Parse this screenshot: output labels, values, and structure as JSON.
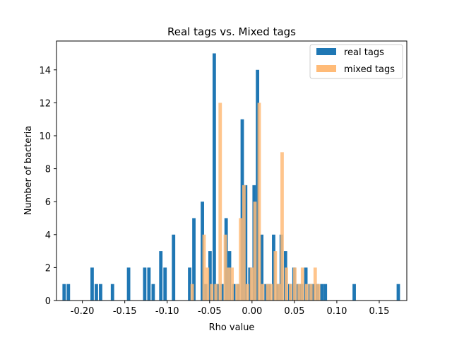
{
  "chart_data": {
    "type": "bar",
    "title": "Real tags vs. Mixed tags",
    "xlabel": "Rho value",
    "ylabel": "Number of bacteria",
    "xlim": [
      -0.2305,
      0.1825
    ],
    "ylim": [
      0,
      15.75
    ],
    "xticks": [
      "-0.20",
      "-0.15",
      "-0.10",
      "-0.05",
      "0.00",
      "0.05",
      "0.10",
      "0.15"
    ],
    "xtick_values": [
      -0.2,
      -0.15,
      -0.1,
      -0.05,
      0.0,
      0.05,
      0.1,
      0.15
    ],
    "yticks": [
      "0",
      "2",
      "4",
      "6",
      "8",
      "10",
      "12",
      "14"
    ],
    "ytick_values": [
      0,
      2,
      4,
      6,
      8,
      10,
      12,
      14
    ],
    "grid": false,
    "legend_position": "top-right",
    "bar_width": 0.004,
    "series": [
      {
        "name": "real tags",
        "color": "#1f77b4",
        "opacity": 1,
        "x": [
          -0.2215,
          -0.2165,
          -0.1885,
          -0.1835,
          -0.1785,
          -0.1645,
          -0.1455,
          -0.1265,
          -0.1215,
          -0.1165,
          -0.1075,
          -0.1025,
          -0.0925,
          -0.0735,
          -0.0685,
          -0.0585,
          -0.0545,
          -0.0495,
          -0.0445,
          -0.0405,
          -0.0355,
          -0.0305,
          -0.0265,
          -0.0215,
          -0.0165,
          -0.0115,
          -0.0075,
          -0.0025,
          0.0025,
          0.0065,
          0.0115,
          0.0165,
          0.0205,
          0.0255,
          0.0305,
          0.0345,
          0.0395,
          0.0445,
          0.0495,
          0.0545,
          0.0585,
          0.0635,
          0.0685,
          0.0725,
          0.0775,
          0.0825,
          0.0865,
          0.1205,
          0.1725
        ],
        "values": [
          1,
          1,
          2,
          1,
          1,
          1,
          2,
          2,
          2,
          1,
          3,
          2,
          4,
          2,
          5,
          6,
          1,
          3,
          15,
          1,
          1,
          5,
          3,
          1,
          1,
          11,
          7,
          2,
          7,
          14,
          4,
          1,
          1,
          4,
          1,
          4,
          3,
          1,
          2,
          1,
          1,
          2,
          1,
          1,
          1,
          1,
          1,
          1,
          1
        ]
      },
      {
        "name": "mixed tags",
        "color": "#ffbb78",
        "opacity": 0.85,
        "x": [
          -0.0705,
          -0.0565,
          -0.0525,
          -0.0475,
          -0.0425,
          -0.0375,
          -0.0315,
          -0.0275,
          -0.0235,
          -0.0175,
          -0.0135,
          -0.0095,
          -0.0055,
          -0.0005,
          0.0035,
          0.0085,
          0.0125,
          0.0185,
          0.0225,
          0.0275,
          0.0315,
          0.0355,
          0.0405,
          0.0455,
          0.0505,
          0.0555,
          0.0595,
          0.0645,
          0.0695,
          0.0745,
          0.0785
        ],
        "values": [
          1,
          4,
          2,
          1,
          1,
          12,
          4,
          2,
          2,
          1,
          5,
          7,
          1,
          2,
          6,
          12,
          1,
          1,
          1,
          3,
          1,
          9,
          2,
          1,
          2,
          1,
          2,
          1,
          1,
          2,
          1
        ]
      }
    ]
  }
}
